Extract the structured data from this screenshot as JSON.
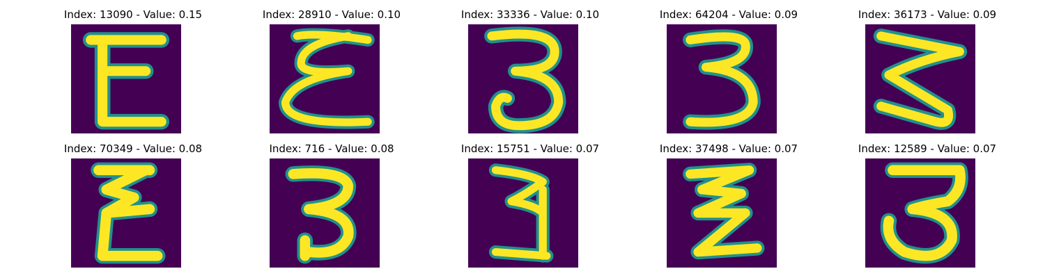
{
  "colors": {
    "background": "#440154",
    "stroke_edge": "#21918c",
    "stroke_mid": "#5ec962",
    "stroke_core": "#fde725"
  },
  "panels": [
    {
      "title": "Index: 13090 - Value: 0.15",
      "glyph": "E-shape"
    },
    {
      "title": "Index: 28910 - Value: 0.10",
      "glyph": "E-shape"
    },
    {
      "title": "Index: 33336 - Value: 0.10",
      "glyph": "3-shape"
    },
    {
      "title": "Index: 64204 - Value: 0.09",
      "glyph": "3-shape"
    },
    {
      "title": "Index: 36173 - Value: 0.09",
      "glyph": "3-shape"
    },
    {
      "title": "Index: 70349 - Value: 0.08",
      "glyph": "E-shape"
    },
    {
      "title": "Index: 716 - Value: 0.08",
      "glyph": "3-shape"
    },
    {
      "title": "Index: 15751 - Value: 0.07",
      "glyph": "3-shape"
    },
    {
      "title": "Index: 37498 - Value: 0.07",
      "glyph": "E-shape"
    },
    {
      "title": "Index: 12589 - Value: 0.07",
      "glyph": "3-shape"
    }
  ]
}
